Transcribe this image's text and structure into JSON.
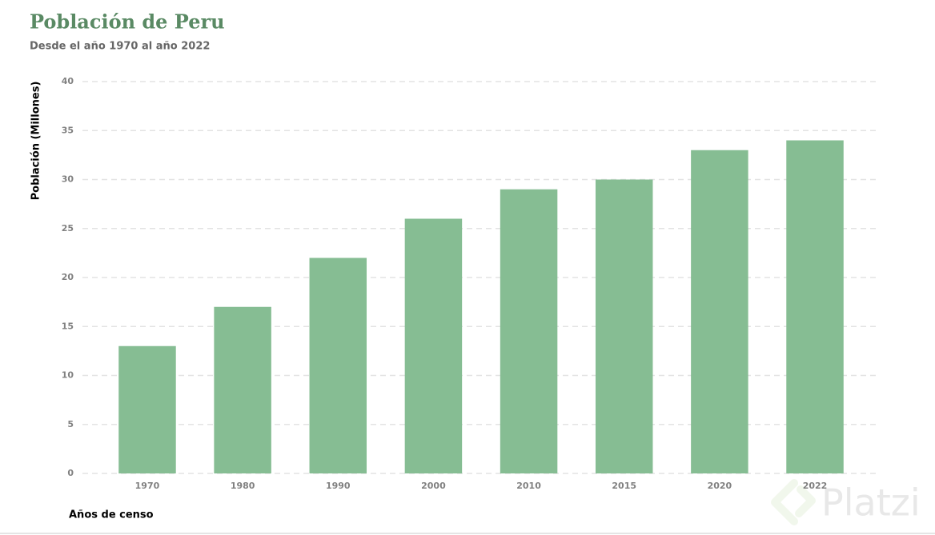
{
  "chart_data": {
    "type": "bar",
    "title": "Población de Peru",
    "subtitle": "Desde el año 1970 al año 2022",
    "x_label": "Años de censo",
    "y_label": "Población (Millones)",
    "categories": [
      "1970",
      "1980",
      "1990",
      "2000",
      "2010",
      "2015",
      "2020",
      "2022"
    ],
    "values": [
      13,
      17,
      22,
      26,
      29,
      30,
      33,
      34
    ],
    "color": "#86bd93",
    "ylim": [
      0,
      40
    ],
    "yticks": [
      0,
      5,
      10,
      15,
      20,
      25,
      30,
      35,
      40
    ],
    "grid": true,
    "watermark": "Platzi"
  }
}
